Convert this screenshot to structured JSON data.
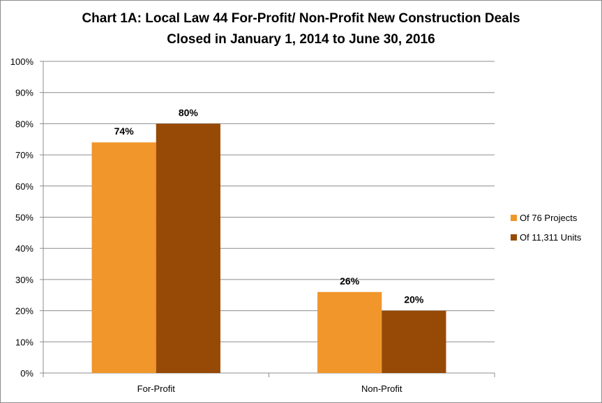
{
  "chart_data": {
    "type": "bar",
    "title_line1": "Chart 1A: Local Law 44 For-Profit/ Non-Profit New Construction Deals",
    "title_line2": "Closed in January 1, 2014 to June 30, 2016",
    "categories": [
      "For-Profit",
      "Non-Profit"
    ],
    "series": [
      {
        "name": "Of 76 Projects",
        "color": "#F0962B",
        "values": [
          74,
          26
        ],
        "labels": [
          "74%",
          "26%"
        ]
      },
      {
        "name": "Of 11,311 Units",
        "color": "#964A06",
        "values": [
          80,
          20
        ],
        "labels": [
          "80%",
          "20%"
        ]
      }
    ],
    "ylim": [
      0,
      100
    ],
    "yticks": [
      "0%",
      "10%",
      "20%",
      "30%",
      "40%",
      "50%",
      "60%",
      "70%",
      "80%",
      "90%",
      "100%"
    ],
    "grid": true,
    "legend_position": "right",
    "xlabel": "",
    "ylabel": ""
  }
}
